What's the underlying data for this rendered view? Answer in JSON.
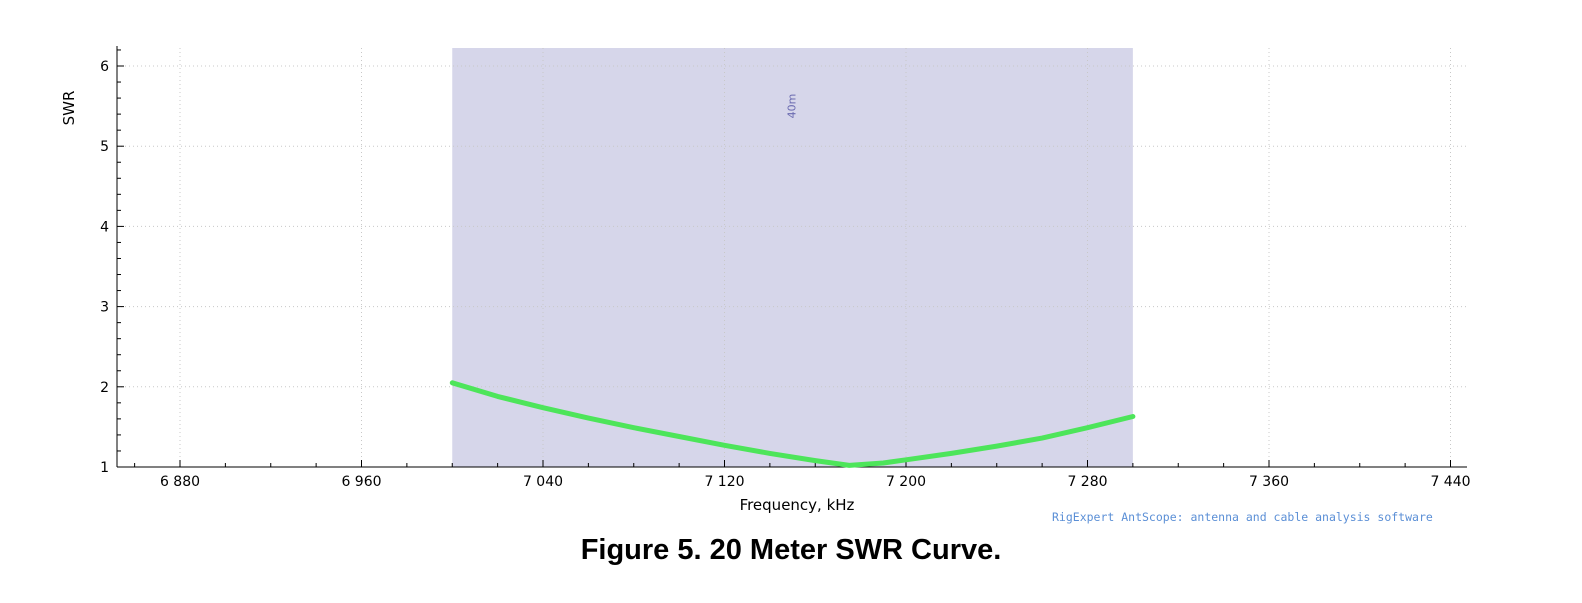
{
  "chart_data": {
    "type": "line",
    "xlabel": "Frequency, kHz",
    "ylabel": "SWR",
    "xlim": [
      6850,
      7455
    ],
    "ylim": [
      1,
      6.25
    ],
    "x_ticks": [
      6880,
      6960,
      7040,
      7120,
      7200,
      7280,
      7360,
      7440
    ],
    "x_tick_labels": [
      "6 880",
      "6 960",
      "7 040",
      "7 120",
      "7 200",
      "7 280",
      "7 360",
      "7 440"
    ],
    "y_ticks": [
      1,
      2,
      3,
      4,
      5,
      6
    ],
    "y_tick_labels": [
      "1",
      "2",
      "3",
      "4",
      "5",
      "6"
    ],
    "grid": true,
    "band": {
      "label": "40m",
      "x_start": 7000,
      "x_end": 7300,
      "color": "#d6d6ea"
    },
    "series": [
      {
        "color": "#4de55a",
        "points": [
          [
            7000,
            2.05
          ],
          [
            7020,
            1.88
          ],
          [
            7040,
            1.74
          ],
          [
            7060,
            1.61
          ],
          [
            7080,
            1.49
          ],
          [
            7100,
            1.38
          ],
          [
            7120,
            1.27
          ],
          [
            7140,
            1.17
          ],
          [
            7160,
            1.08
          ],
          [
            7175,
            1.02
          ],
          [
            7190,
            1.05
          ],
          [
            7200,
            1.09
          ],
          [
            7220,
            1.17
          ],
          [
            7240,
            1.26
          ],
          [
            7260,
            1.36
          ],
          [
            7280,
            1.49
          ],
          [
            7300,
            1.63
          ]
        ]
      }
    ]
  },
  "credit": "RigExpert AntScope: antenna and cable analysis software",
  "caption": "Figure 5. 20 Meter SWR Curve."
}
